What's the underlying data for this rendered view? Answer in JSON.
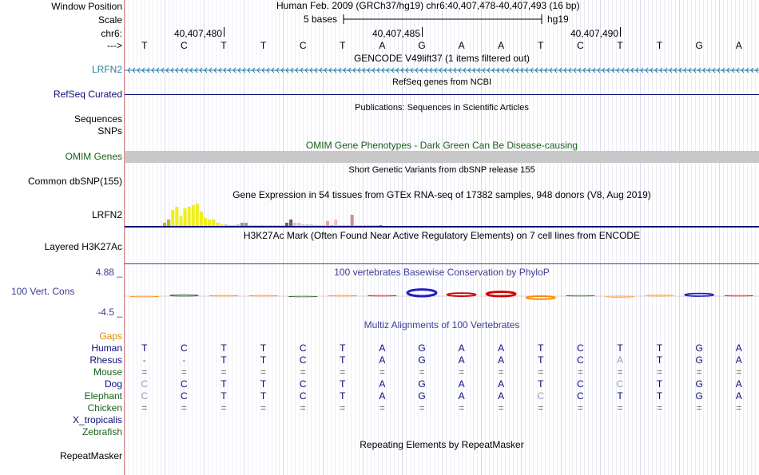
{
  "header": {
    "window_position_label": "Window Position",
    "window_position_value": "Human Feb. 2009 (GRCh37/hg19)   chr6:40,407,478-40,407,493 (16 bp)",
    "scale_label": "Scale",
    "scale_text": "5 bases",
    "scale_assembly": "hg19",
    "chrom_label": "chr6:",
    "arrow_label": "--->",
    "ticks": [
      "40,407,480",
      "40,407,485",
      "40,407,490"
    ],
    "sequence": [
      "T",
      "C",
      "T",
      "T",
      "C",
      "T",
      "A",
      "G",
      "A",
      "A",
      "T",
      "C",
      "T",
      "T",
      "G",
      "A"
    ]
  },
  "tracks": {
    "gencode": {
      "title": "GENCODE V49lift37 (1 items filtered out)",
      "label": "LRFN2",
      "color": "#2a7fa0"
    },
    "refseq": {
      "title": "RefSeq genes from NCBI",
      "label": "RefSeq Curated",
      "color": "#0c0c78"
    },
    "publications": {
      "title": "Publications: Sequences in Scientific Articles",
      "label1": "Sequences",
      "label2": "SNPs"
    },
    "omim": {
      "title": "OMIM Gene Phenotypes - Dark Green Can Be Disease-causing",
      "label": "OMIM Genes",
      "color": "#1a5f1a"
    },
    "dbsnp": {
      "title": "Short Genetic Variants from dbSNP release 155",
      "label": "Common dbSNP(155)"
    },
    "gtex": {
      "title": "Gene Expression in 54 tissues from GTEx RNA-seq of 17382 samples, 948 donors (V8, Aug 2019)",
      "label": "LRFN2",
      "bar_values": [
        0.2,
        0.4,
        1.0,
        1.2,
        0.6,
        1.1,
        1.2,
        1.3,
        1.4,
        0.9,
        0.5,
        0.4,
        0.4,
        0.2,
        0.1,
        0.1,
        0.05,
        0.05,
        0.1,
        0.2,
        0.2,
        0.05,
        0.05,
        0.05,
        0.05,
        0.05,
        0.05,
        0.05,
        0.05,
        0.05,
        0.2,
        0.4,
        0.2,
        0.2,
        0.1,
        0.1,
        0.1,
        0.05,
        0.05,
        0.05,
        0.3,
        0.05,
        0.4,
        0.05,
        0.05,
        0.05,
        0.7,
        0.05,
        0.05,
        0.05,
        0.05,
        0.05,
        0.05,
        0.05
      ],
      "bar_colors": [
        "#bbbb00",
        "#bbbb00",
        "#eeee22",
        "#eeee22",
        "#eeee22",
        "#eeee22",
        "#eeee22",
        "#eeee22",
        "#eeee22",
        "#eeee22",
        "#eeee22",
        "#eeee22",
        "#eeee22",
        "#eeee22",
        "#eeee22",
        "#cccccc",
        "#cccccc",
        "#cccccc",
        "#cccccc",
        "#999999",
        "#999999",
        "#cccccc",
        "#cccccc",
        "#cccccc",
        "#cccccc",
        "#cccccc",
        "#cccccc",
        "#cccccc",
        "#cccccc",
        "#cccccc",
        "#7a5c4a",
        "#7a5c4a",
        "#cccccc",
        "#cccccc",
        "#cccccc",
        "#cccccc",
        "#cccccc",
        "#cccccc",
        "#cccccc",
        "#cccccc",
        "#f4a0a0",
        "#88cc88",
        "#f4c0c0",
        "#cccccc",
        "#cccccc",
        "#cccccc",
        "#d09090",
        "#cccccc",
        "#cccccc",
        "#cccccc",
        "#cccccc",
        "#cccccc",
        "#cccccc",
        "#888888"
      ]
    },
    "h3k27ac": {
      "title": "H3K27Ac Mark (Often Found Near Active Regulatory Elements) on 7 cell lines from ENCODE",
      "label": "Layered H3K27Ac"
    },
    "phylop": {
      "title": "100 vertebrates Basewise Conservation by PhyloP",
      "label": "100 Vert. Cons",
      "max_label": "4.88 _",
      "min_label": "-4.5 _",
      "color": "#3c3c96",
      "scores": [
        -0.1,
        0.4,
        0.1,
        0.1,
        -0.1,
        0.0,
        0.0,
        2.0,
        0.9,
        1.3,
        -0.9,
        0.2,
        -0.3,
        0.3,
        0.8,
        0.1
      ]
    },
    "multiz": {
      "title": "Multiz Alignments of 100 Vertebrates",
      "species": [
        {
          "name": "Gaps",
          "color": "#e08a00",
          "seq": []
        },
        {
          "name": "Human",
          "color": "#0c0c78",
          "seq": [
            "T",
            "C",
            "T",
            "T",
            "C",
            "T",
            "A",
            "G",
            "A",
            "A",
            "T",
            "C",
            "T",
            "T",
            "G",
            "A"
          ]
        },
        {
          "name": "Rhesus",
          "color": "#0c0c78",
          "seq": [
            "-",
            "-",
            "T",
            "T",
            "C",
            "T",
            "A",
            "G",
            "A",
            "A",
            "T",
            "C",
            "A",
            "T",
            "G",
            "A"
          ]
        },
        {
          "name": "Mouse",
          "color": "#1a5f1a",
          "seq": [
            "=",
            "=",
            "=",
            "=",
            "=",
            "=",
            "=",
            "=",
            "=",
            "=",
            "=",
            "=",
            "=",
            "=",
            "=",
            "="
          ]
        },
        {
          "name": "Dog",
          "color": "#0c0c78",
          "seq": [
            "C",
            "C",
            "T",
            "T",
            "C",
            "T",
            "A",
            "G",
            "A",
            "A",
            "T",
            "C",
            "C",
            "T",
            "G",
            "A"
          ]
        },
        {
          "name": "Elephant",
          "color": "#1a5f1a",
          "seq": [
            "C",
            "C",
            "T",
            "T",
            "C",
            "T",
            "A",
            "G",
            "A",
            "A",
            "C",
            "C",
            "T",
            "T",
            "G",
            "A"
          ]
        },
        {
          "name": "Chicken",
          "color": "#1a5f1a",
          "seq": [
            "=",
            "=",
            "=",
            "=",
            "=",
            "=",
            "=",
            "=",
            "=",
            "=",
            "=",
            "=",
            "=",
            "=",
            "=",
            "="
          ]
        },
        {
          "name": "X_tropicalis",
          "color": "#0c0c78",
          "seq": []
        },
        {
          "name": "Zebrafish",
          "color": "#1a5f1a",
          "seq": []
        }
      ]
    },
    "repeatmasker": {
      "title": "Repeating Elements by RepeatMasker",
      "label": "RepeatMasker"
    }
  }
}
